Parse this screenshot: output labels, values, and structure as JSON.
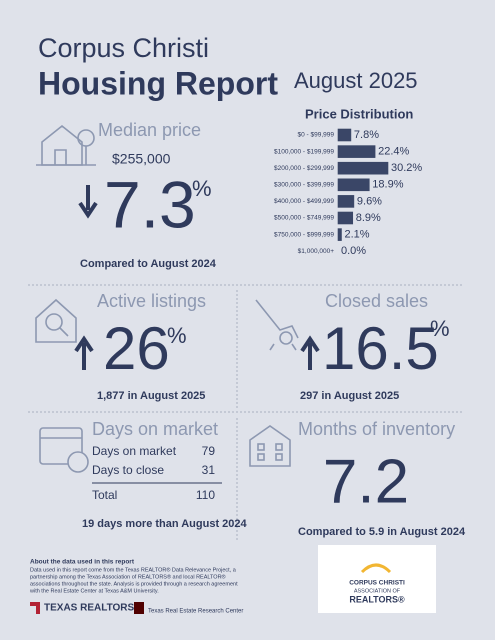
{
  "header": {
    "city": "Corpus Christi",
    "title": "Housing Report",
    "period": "August 2025"
  },
  "chart_data": {
    "type": "bar",
    "orientation": "horizontal",
    "title": "Price Distribution",
    "categories": [
      "$0 - $99,999",
      "$100,000 - $199,999",
      "$200,000 - $299,999",
      "$300,000 - $399,999",
      "$400,000 - $499,999",
      "$500,000 - $749,999",
      "$750,000 - $999,999",
      "$1,000,000+"
    ],
    "values": [
      7.8,
      22.4,
      30.2,
      18.9,
      9.6,
      8.9,
      2.1,
      0.0
    ],
    "value_labels": [
      "7.8%",
      "22.4%",
      "30.2%",
      "18.9%",
      "9.6%",
      "8.9%",
      "2.1%",
      "0.0%"
    ],
    "color": "#3a4667"
  },
  "median_price": {
    "title": "Median price",
    "price": "$255,000",
    "change": 7.3,
    "unit": "%",
    "note": "Compared to August 2024"
  },
  "active_listings": {
    "title": "Active listings",
    "change": 26,
    "unit": "%",
    "note": "1,877 in August 2025"
  },
  "closed_sales": {
    "title": "Closed sales",
    "change": 16.5,
    "unit": "%",
    "note": "297 in August 2025"
  },
  "days_on_market": {
    "title": "Days on market",
    "rows": [
      [
        "Days on market",
        79
      ],
      [
        "Days to close",
        31
      ]
    ],
    "total": [
      "Total",
      110
    ],
    "note": "19 days more than August 2024"
  },
  "months_of_inventory": {
    "title": "Months of inventory",
    "value": 7.2,
    "note": "Compared to 5.9 in August 2024"
  },
  "footer": {
    "heading": "About the data used in this report",
    "lines": [
      "Data used in this report come from the Texas REALTOR® Data Relevance Project, a",
      "partnership among the Texas Association of REALTORS® and local REALTOR®",
      "associations throughout the state. Analysis is provided through a research agreement",
      "with the Real Estate Center at Texas A&M University."
    ],
    "logo_left": "TEXAS REALTORS",
    "logo_center": "Texas Real Estate Research Center",
    "logo_right": [
      "CORPUS CHRISTI",
      "ASSOCIATION OF",
      "REALTORS®"
    ]
  }
}
